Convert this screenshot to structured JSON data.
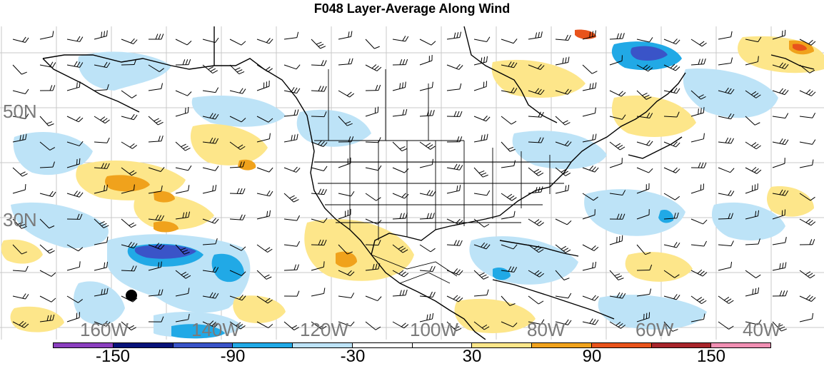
{
  "title": "F048 Layer-Average Along Wind",
  "lat_labels": [
    "50N",
    "30N"
  ],
  "lon_labels": [
    "160W",
    "140W",
    "120W",
    "100W",
    "80W",
    "60W",
    "40W"
  ],
  "colorbar": {
    "labels": [
      "-150",
      "-90",
      "-30",
      "30",
      "90",
      "150"
    ],
    "colors": [
      "#8b3fbf",
      "#08137a",
      "#3a54c8",
      "#21a9e6",
      "#bde3f7",
      "#ffffff",
      "#ffffff",
      "#fde68a",
      "#f0a21c",
      "#e8531b",
      "#a8252b",
      "#f08fb3"
    ]
  },
  "shading_colors": {
    "light_blue": "#bde3f7",
    "mid_blue": "#21a9e6",
    "dark_blue": "#3a54c8",
    "light_yellow": "#fde68a",
    "orange": "#f0a21c",
    "red": "#e8531b"
  },
  "markers": [
    {
      "name": "storm-center-dot",
      "color": "#000000"
    }
  ]
}
